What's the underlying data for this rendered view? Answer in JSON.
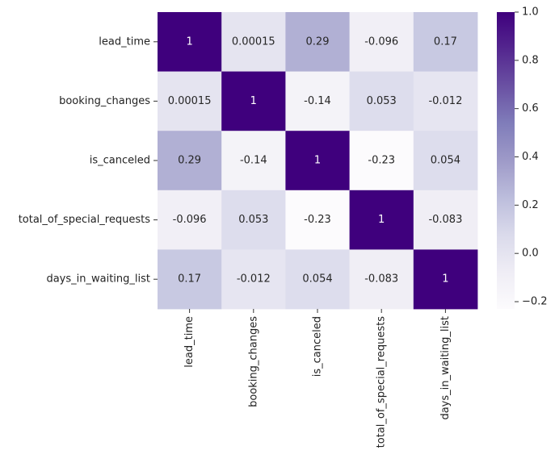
{
  "chart_data": {
    "type": "heatmap",
    "title": "",
    "xlabel": "",
    "ylabel": "",
    "rows": [
      "lead_time",
      "booking_changes",
      "is_canceled",
      "total_of_special_requests",
      "days_in_waiting_list"
    ],
    "columns": [
      "lead_time",
      "booking_changes",
      "is_canceled",
      "total_of_special_requests",
      "days_in_waiting_list"
    ],
    "values": [
      [
        1,
        0.00015,
        0.29,
        -0.096,
        0.17
      ],
      [
        0.00015,
        1,
        -0.14,
        0.053,
        -0.012
      ],
      [
        0.29,
        -0.14,
        1,
        -0.23,
        0.054
      ],
      [
        -0.096,
        0.053,
        -0.23,
        1,
        -0.083
      ],
      [
        0.17,
        -0.012,
        0.054,
        -0.083,
        1
      ]
    ],
    "annotations": [
      [
        "1",
        "0.00015",
        "0.29",
        "-0.096",
        "0.17"
      ],
      [
        "0.00015",
        "1",
        "-0.14",
        "0.053",
        "-0.012"
      ],
      [
        "0.29",
        "-0.14",
        "1",
        "-0.23",
        "0.054"
      ],
      [
        "-0.096",
        "0.053",
        "-0.23",
        "1",
        "-0.083"
      ],
      [
        "0.17",
        "-0.012",
        "0.054",
        "-0.083",
        "1"
      ]
    ],
    "colormap": "Purples",
    "colorbar": {
      "vmin": -0.23,
      "vmax": 1.0,
      "ticks": [
        -0.2,
        0.0,
        0.2,
        0.4,
        0.6,
        0.8,
        1.0
      ],
      "tick_labels": [
        "−0.2",
        "0.0",
        "0.2",
        "0.4",
        "0.6",
        "0.8",
        "1.0"
      ],
      "colors": [
        "#fcfbfd",
        "#efedf5",
        "#dadaeb",
        "#bcbddc",
        "#9e9ac8",
        "#807dba",
        "#6a51a3",
        "#54278f",
        "#3f007d"
      ]
    }
  }
}
